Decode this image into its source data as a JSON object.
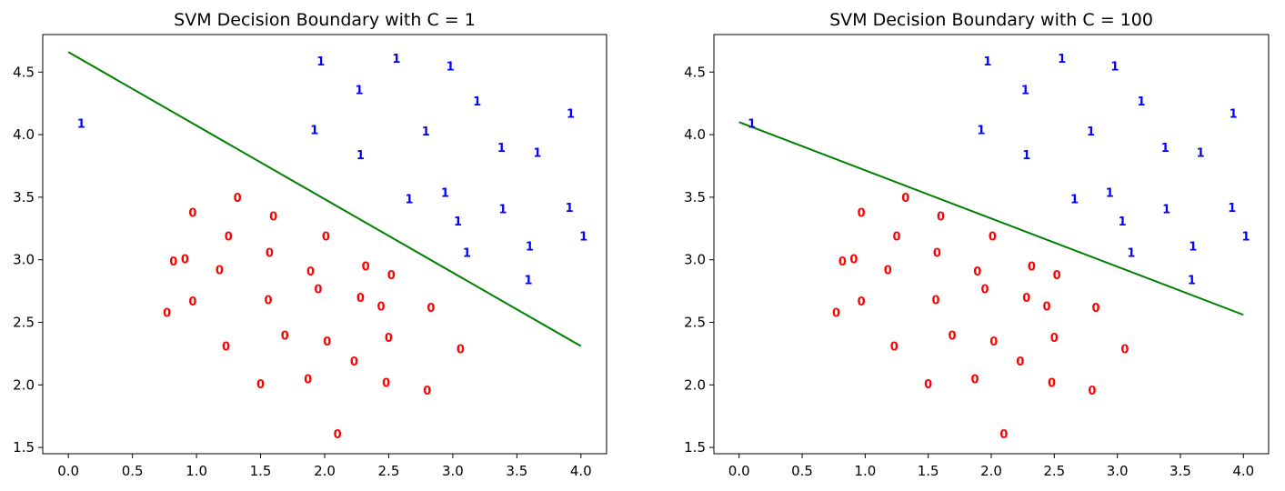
{
  "chart_data": [
    {
      "type": "scatter",
      "title": "SVM Decision Boundary with C = 1",
      "xlabel": "",
      "ylabel": "",
      "xlim": [
        -0.2,
        4.2
      ],
      "ylim": [
        1.45,
        4.8
      ],
      "xticks": [
        "0.0",
        "0.5",
        "1.0",
        "1.5",
        "2.0",
        "2.5",
        "3.0",
        "3.5",
        "4.0"
      ],
      "yticks": [
        "1.5",
        "2.0",
        "2.5",
        "3.0",
        "3.5",
        "4.0",
        "4.5"
      ],
      "grid": false,
      "boundary": {
        "color": "#008000",
        "x": [
          0.0,
          4.0
        ],
        "y": [
          4.66,
          2.31
        ]
      }
    },
    {
      "type": "scatter",
      "title": "SVM Decision Boundary with C = 100",
      "xlabel": "",
      "ylabel": "",
      "xlim": [
        -0.2,
        4.2
      ],
      "ylim": [
        1.45,
        4.8
      ],
      "xticks": [
        "0.0",
        "0.5",
        "1.0",
        "1.5",
        "2.0",
        "2.5",
        "3.0",
        "3.5",
        "4.0"
      ],
      "yticks": [
        "1.5",
        "2.0",
        "2.5",
        "3.0",
        "3.5",
        "4.0",
        "4.5"
      ],
      "grid": false,
      "boundary": {
        "color": "#008000",
        "x": [
          0.0,
          4.0
        ],
        "y": [
          4.1,
          2.56
        ]
      }
    }
  ],
  "points": {
    "class0": {
      "label": "0",
      "color": "#ff0000",
      "x": [
        1.32,
        0.97,
        1.6,
        1.25,
        2.01,
        0.82,
        0.91,
        1.57,
        1.18,
        1.89,
        2.32,
        2.52,
        1.95,
        1.56,
        2.28,
        0.97,
        2.44,
        2.83,
        0.77,
        1.69,
        2.5,
        2.02,
        1.23,
        3.06,
        2.23,
        1.87,
        2.48,
        1.5,
        2.8,
        2.1
      ],
      "y": [
        3.5,
        3.38,
        3.35,
        3.19,
        3.19,
        2.99,
        3.01,
        3.06,
        2.92,
        2.91,
        2.95,
        2.88,
        2.77,
        2.68,
        2.7,
        2.67,
        2.63,
        2.62,
        2.58,
        2.4,
        2.38,
        2.35,
        2.31,
        2.29,
        2.19,
        2.05,
        2.02,
        2.01,
        1.96,
        1.61
      ]
    },
    "class1": {
      "label": "1",
      "color": "#0000ff",
      "x": [
        0.1,
        1.97,
        2.56,
        2.98,
        2.27,
        3.19,
        3.92,
        1.92,
        2.79,
        2.28,
        3.38,
        3.66,
        2.66,
        2.94,
        3.39,
        3.91,
        3.04,
        4.02,
        3.6,
        3.11,
        3.59
      ],
      "y": [
        4.09,
        4.59,
        4.61,
        4.55,
        4.36,
        4.27,
        4.17,
        4.04,
        4.03,
        3.84,
        3.9,
        3.86,
        3.49,
        3.54,
        3.41,
        3.42,
        3.31,
        3.19,
        3.11,
        3.06,
        2.84
      ]
    }
  }
}
